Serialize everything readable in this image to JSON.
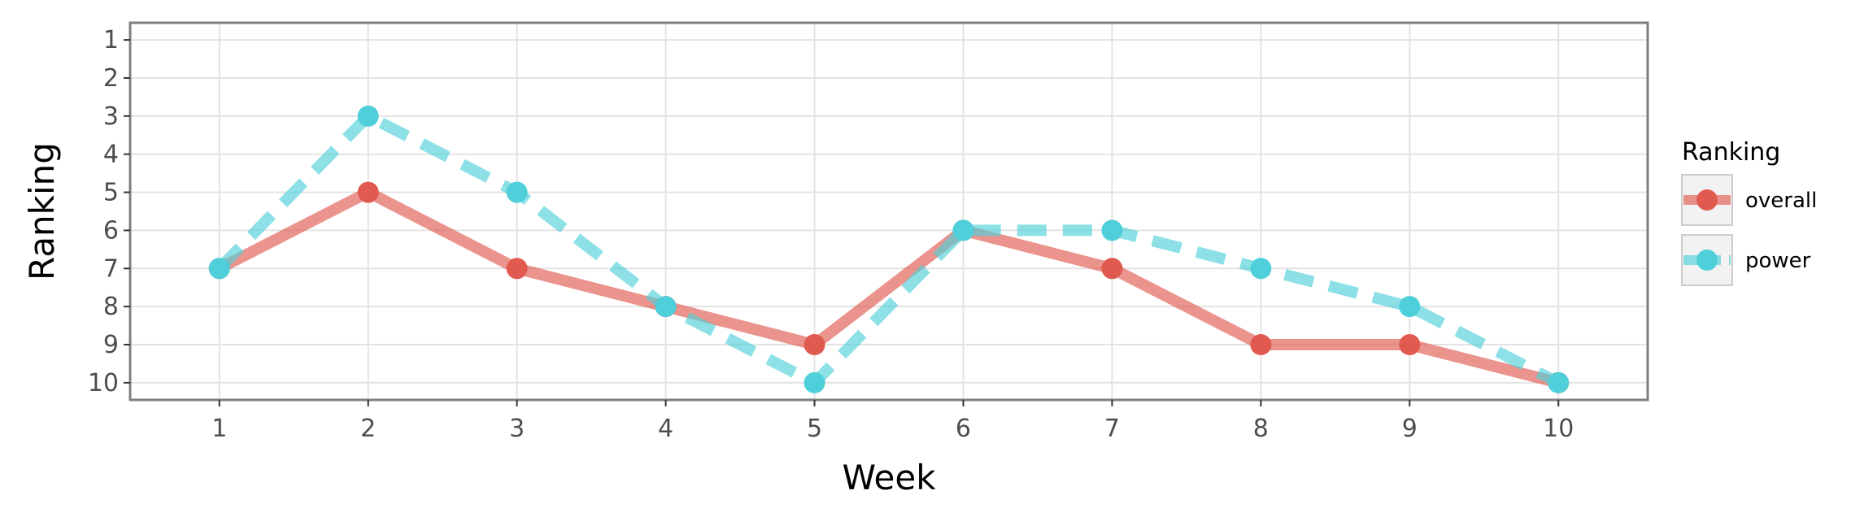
{
  "chart_data": {
    "type": "line",
    "title": "",
    "xlabel": "Week",
    "ylabel": "Ranking",
    "x": [
      1,
      2,
      3,
      4,
      5,
      6,
      7,
      8,
      9,
      10
    ],
    "xlim": [
      0.4,
      10.6
    ],
    "ylim": [
      10.45,
      0.55
    ],
    "y_reversed": true,
    "x_ticks": [
      "1",
      "2",
      "3",
      "4",
      "5",
      "6",
      "7",
      "8",
      "9",
      "10"
    ],
    "y_ticks": [
      "1",
      "2",
      "3",
      "4",
      "5",
      "6",
      "7",
      "8",
      "9",
      "10"
    ],
    "grid": true,
    "legend": {
      "title": "Ranking",
      "placement": "right"
    },
    "series": [
      {
        "name": "overall",
        "values": [
          7,
          5,
          7,
          8,
          9,
          6,
          7,
          9,
          9,
          10
        ],
        "color": "#e05a50",
        "dash": "solid"
      },
      {
        "name": "power",
        "values": [
          7,
          3,
          5,
          8,
          10,
          6,
          6,
          7,
          8,
          10
        ],
        "color": "#4ecfd9",
        "dash": "dashed"
      }
    ]
  }
}
